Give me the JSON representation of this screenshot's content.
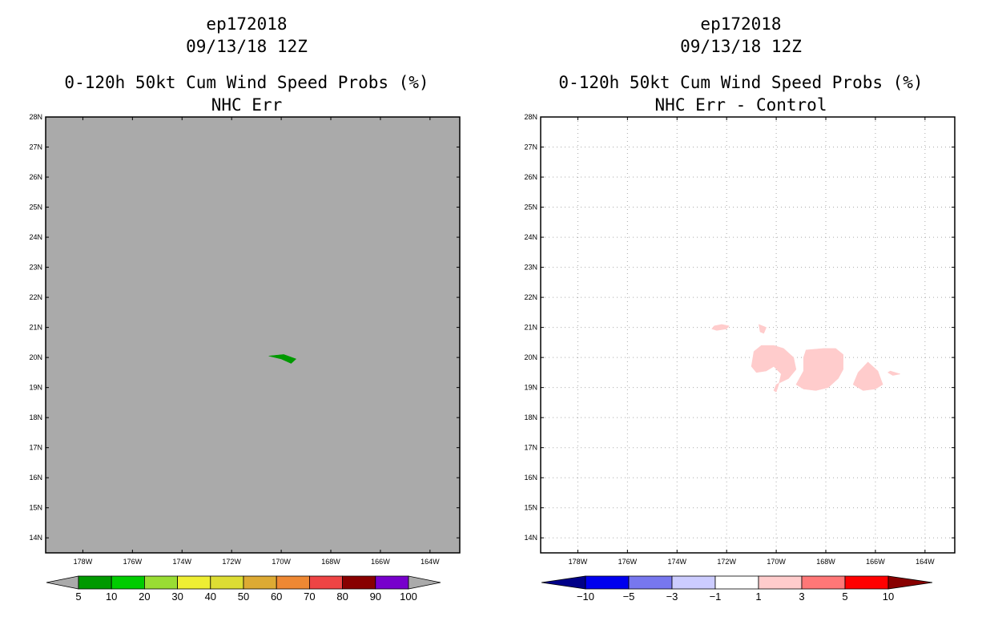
{
  "chart_data": [
    {
      "type": "filled-contour-map",
      "storm": "ep172018",
      "datetime": "09/13/18 12Z",
      "title": "0-120h 50kt Cum Wind Speed Probs (%)",
      "subtitle": "NHC Err",
      "lon_range": [
        -179.5,
        -162.8
      ],
      "lat_range": [
        13.5,
        28
      ],
      "x_tick_labels": [
        "178W",
        "176W",
        "174W",
        "172W",
        "170W",
        "168W",
        "166W",
        "164W"
      ],
      "x_tick_values": [
        -178,
        -176,
        -174,
        -172,
        -170,
        -168,
        -166,
        -164
      ],
      "y_tick_labels": [
        "14N",
        "15N",
        "16N",
        "17N",
        "18N",
        "19N",
        "20N",
        "21N",
        "22N",
        "23N",
        "24N",
        "25N",
        "26N",
        "27N",
        "28N"
      ],
      "y_tick_values": [
        14,
        15,
        16,
        17,
        18,
        19,
        20,
        21,
        22,
        23,
        24,
        25,
        26,
        27,
        28
      ],
      "background_color": "#aaaaaa",
      "grid": false,
      "colorbar": {
        "labels": [
          "5",
          "10",
          "20",
          "30",
          "40",
          "50",
          "60",
          "70",
          "80",
          "90",
          "100"
        ],
        "colors": [
          "#009900",
          "#00cc00",
          "#99dd33",
          "#eeee33",
          "#dddd33",
          "#ddaa33",
          "#ee8833",
          "#ee4444",
          "#880000",
          "#7700cc"
        ],
        "under_color": "#aaaaaa",
        "over_color": "#aaaaaa"
      },
      "regions": [
        {
          "range": "5-10",
          "color": "#009900",
          "lonlat": [
            [
              -170.5,
              20.05
            ],
            [
              -169.9,
              20.1
            ],
            [
              -169.4,
              19.95
            ],
            [
              -169.6,
              19.8
            ],
            [
              -170.0,
              19.95
            ]
          ]
        }
      ]
    },
    {
      "type": "filled-contour-map",
      "storm": "ep172018",
      "datetime": "09/13/18 12Z",
      "title": "0-120h 50kt Cum Wind Speed Probs (%)",
      "subtitle": "NHC Err - Control",
      "lon_range": [
        -179.5,
        -162.8
      ],
      "lat_range": [
        13.5,
        28
      ],
      "x_tick_labels": [
        "178W",
        "176W",
        "174W",
        "172W",
        "170W",
        "168W",
        "166W",
        "164W"
      ],
      "x_tick_values": [
        -178,
        -176,
        -174,
        -172,
        -170,
        -168,
        -166,
        -164
      ],
      "y_tick_labels": [
        "14N",
        "15N",
        "16N",
        "17N",
        "18N",
        "19N",
        "20N",
        "21N",
        "22N",
        "23N",
        "24N",
        "25N",
        "26N",
        "27N",
        "28N"
      ],
      "y_tick_values": [
        14,
        15,
        16,
        17,
        18,
        19,
        20,
        21,
        22,
        23,
        24,
        25,
        26,
        27,
        28
      ],
      "background_color": "#ffffff",
      "grid": true,
      "colorbar": {
        "labels": [
          "-10",
          "-5",
          "-3",
          "-1",
          "1",
          "3",
          "5",
          "10"
        ],
        "colors": [
          "#0000ee",
          "#7777ee",
          "#ccccff",
          "#ffffff",
          "#ffcccc",
          "#ff7777",
          "#ff0000"
        ],
        "under_color": "#000088",
        "over_color": "#880000"
      },
      "regions": [
        {
          "range": "1-3",
          "color": "#ffcccc",
          "lonlat": [
            [
              -172.5,
              21.05
            ],
            [
              -172.2,
              21.1
            ],
            [
              -171.9,
              21.05
            ],
            [
              -172.0,
              20.95
            ],
            [
              -172.4,
              20.9
            ],
            [
              -172.6,
              20.95
            ]
          ]
        },
        {
          "range": "1-3",
          "color": "#ffcccc",
          "lonlat": [
            [
              -170.7,
              21.1
            ],
            [
              -170.4,
              21.0
            ],
            [
              -170.5,
              20.8
            ],
            [
              -170.65,
              20.85
            ]
          ]
        },
        {
          "range": "1-3",
          "color": "#ffcccc",
          "lonlat": [
            [
              -170.9,
              20.2
            ],
            [
              -170.6,
              20.4
            ],
            [
              -170.1,
              20.4
            ],
            [
              -169.7,
              20.3
            ],
            [
              -169.3,
              20.0
            ],
            [
              -169.2,
              19.6
            ],
            [
              -169.5,
              19.3
            ],
            [
              -170.0,
              19.1
            ],
            [
              -170.1,
              18.9
            ],
            [
              -170.0,
              18.85
            ],
            [
              -169.9,
              19.1
            ],
            [
              -169.8,
              19.45
            ],
            [
              -170.1,
              19.7
            ],
            [
              -170.4,
              19.55
            ],
            [
              -170.8,
              19.5
            ],
            [
              -171.0,
              19.7
            ]
          ]
        },
        {
          "range": "1-3",
          "color": "#ffcccc",
          "lonlat": [
            [
              -168.8,
              20.25
            ],
            [
              -168.1,
              20.3
            ],
            [
              -167.6,
              20.3
            ],
            [
              -167.3,
              20.1
            ],
            [
              -167.3,
              19.6
            ],
            [
              -167.5,
              19.3
            ],
            [
              -167.9,
              19.0
            ],
            [
              -168.4,
              18.9
            ],
            [
              -168.9,
              18.95
            ],
            [
              -169.2,
              19.1
            ],
            [
              -168.9,
              19.55
            ],
            [
              -168.9,
              20.0
            ]
          ]
        },
        {
          "range": "1-3",
          "color": "#ffcccc",
          "lonlat": [
            [
              -166.3,
              19.85
            ],
            [
              -165.9,
              19.55
            ],
            [
              -165.7,
              19.1
            ],
            [
              -166.0,
              18.95
            ],
            [
              -166.5,
              18.9
            ],
            [
              -166.9,
              19.1
            ],
            [
              -166.7,
              19.5
            ]
          ]
        },
        {
          "range": "1-3",
          "color": "#ffcccc",
          "lonlat": [
            [
              -165.4,
              19.55
            ],
            [
              -165.0,
              19.45
            ],
            [
              -165.3,
              19.4
            ],
            [
              -165.5,
              19.5
            ]
          ]
        }
      ]
    }
  ]
}
